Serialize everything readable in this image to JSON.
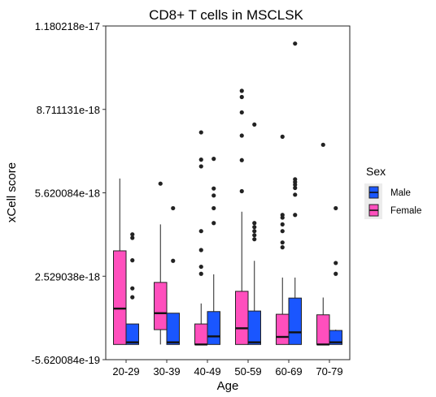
{
  "chart_data": {
    "type": "box",
    "title": "CD8+ T cells in MSCLSK",
    "xlabel": "Age",
    "ylabel": "xCell score",
    "ylim": [
      -5.620084e-19,
      1.180218e-17
    ],
    "yticks": [
      {
        "value": -5.620084e-19,
        "label": "-5.620084e-19"
      },
      {
        "value": 2.529038e-18,
        "label": "2.529038e-18"
      },
      {
        "value": 5.620084e-18,
        "label": "5.620084e-18"
      },
      {
        "value": 8.711131e-18,
        "label": "8.711131e-18"
      },
      {
        "value": 1.180218e-17,
        "label": "1.180218e-17"
      }
    ],
    "categories": [
      "20-29",
      "30-39",
      "40-49",
      "50-59",
      "60-69",
      "70-79"
    ],
    "legend": {
      "title": "Sex",
      "position": "right",
      "entries": [
        {
          "label": "Male",
          "color": "#1a56ff"
        },
        {
          "label": "Female",
          "color": "#ff4fbd"
        }
      ]
    },
    "series": [
      {
        "name": "Female",
        "color": "#ff4fbd",
        "boxes": [
          {
            "q1": 0.0,
            "median": 1.33e-18,
            "q3": 3.47e-18,
            "whisker_low": 0.0,
            "whisker_high": 6.15e-18,
            "outliers": []
          },
          {
            "q1": 5.5e-19,
            "median": 1.16e-18,
            "q3": 2.3e-18,
            "whisker_low": 0.0,
            "whisker_high": 4.45e-18,
            "outliers": [
              5.96e-18
            ]
          },
          {
            "q1": 0.0,
            "median": 0.0,
            "q3": 7.6e-19,
            "whisker_low": 0.0,
            "whisker_high": 1.52e-18,
            "outliers": [
              2.62e-18,
              2.88e-18,
              3.5e-18,
              4.2e-18,
              6.6e-18,
              6.85e-18,
              7.86e-18
            ]
          },
          {
            "q1": 0.0,
            "median": 6e-19,
            "q3": 1.97e-18,
            "whisker_low": 0.0,
            "whisker_high": 4.92e-18,
            "outliers": [
              5.68e-18,
              6.83e-18,
              7.74e-18,
              8.6e-18,
              9.17e-18,
              9.4e-18
            ]
          },
          {
            "q1": 0.0,
            "median": 2.8e-19,
            "q3": 1.12e-18,
            "whisker_low": 0.0,
            "whisker_high": 2.48e-18,
            "outliers": [
              3.6e-18,
              3.78e-18,
              4.2e-18,
              4.45e-18,
              4.7e-18,
              4.8e-18,
              7.7e-18
            ]
          },
          {
            "q1": 0.0,
            "median": 0.0,
            "q3": 1.1e-18,
            "whisker_low": 0.0,
            "whisker_high": 1.74e-18,
            "outliers": [
              7.4e-18
            ]
          }
        ]
      },
      {
        "name": "Male",
        "color": "#1a56ff",
        "boxes": [
          {
            "q1": 0.0,
            "median": 8e-20,
            "q3": 7.6e-19,
            "whisker_low": 0.0,
            "whisker_high": 7.6e-19,
            "outliers": [
              1.75e-18,
              2.08e-18,
              3.12e-18,
              3.95e-18,
              4.08e-18
            ]
          },
          {
            "q1": 0.0,
            "median": 8e-20,
            "q3": 1.16e-18,
            "whisker_low": 0.0,
            "whisker_high": 1.16e-18,
            "outliers": [
              3.1e-18,
              5.05e-18
            ]
          },
          {
            "q1": 0.0,
            "median": 3e-19,
            "q3": 1.22e-18,
            "whisker_low": 0.0,
            "whisker_high": 2.6e-18,
            "outliers": [
              4.5e-18,
              5.05e-18,
              5.52e-18,
              5.78e-18,
              6.88e-18
            ]
          },
          {
            "q1": 0.0,
            "median": 8e-20,
            "q3": 1.24e-18,
            "whisker_low": 0.0,
            "whisker_high": 3.1e-18,
            "outliers": [
              3.9e-18,
              4.05e-18,
              4.2e-18,
              4.35e-18,
              4.5e-18,
              8.15e-18
            ]
          },
          {
            "q1": 0.0,
            "median": 4.5e-19,
            "q3": 1.72e-18,
            "whisker_low": 0.0,
            "whisker_high": 2.48e-18,
            "outliers": [
              4.8e-18,
              5.55e-18,
              5.8e-18,
              5.92e-18,
              6.02e-18,
              6.12e-18,
              1.115e-17
            ]
          },
          {
            "q1": 0.0,
            "median": 8e-20,
            "q3": 5.2e-19,
            "whisker_low": 0.0,
            "whisker_high": 5.5e-19,
            "outliers": [
              2.62e-18,
              3.02e-18,
              5.05e-18
            ]
          }
        ]
      }
    ]
  }
}
